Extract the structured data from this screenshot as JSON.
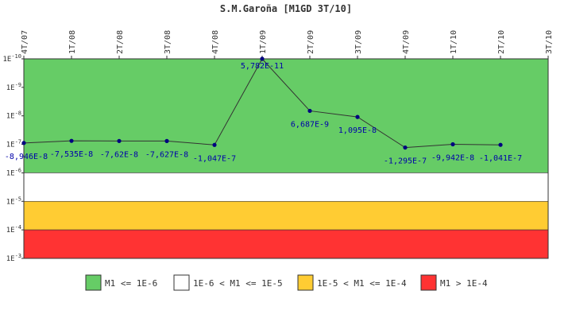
{
  "chart_data": {
    "type": "line",
    "title": "S.M.Garoña [M1GD 3T/10]",
    "categories": [
      "4T/07",
      "1T/08",
      "2T/08",
      "3T/08",
      "4T/08",
      "1T/09",
      "2T/09",
      "3T/09",
      "4T/09",
      "1T/10",
      "2T/10",
      "3T/10"
    ],
    "y_scale": "log",
    "y_axis_inverted": true,
    "y_ticks": [
      "1E-10",
      "1E-9",
      "1E-8",
      "1E-7",
      "1E-6",
      "1E-5",
      "1E-4",
      "1E-3"
    ],
    "ylim": [
      1e-10,
      0.001
    ],
    "series": [
      {
        "values": [
          -8.946e-08,
          -7.535e-08,
          -7.62e-08,
          -7.627e-08,
          -1.047e-07,
          5.782e-11,
          6.687e-09,
          1.095e-08,
          -1.295e-07,
          -9.942e-08,
          -1.041e-07,
          null
        ],
        "labels": [
          "-8,946E-8",
          "-7,535E-8",
          "-7,62E-8",
          "-7,627E-8",
          "-1,047E-7",
          "5,782E-11",
          "6,687E-9",
          "1,095E-8",
          "-1,295E-7",
          "-9,942E-8",
          "-1,041E-7",
          ""
        ],
        "color": "#000080"
      }
    ],
    "bands": [
      {
        "from": 1e-10,
        "to": 1e-06,
        "color": "#66cc66",
        "label": "M1 <= 1E-6"
      },
      {
        "from": 1e-06,
        "to": 1e-05,
        "color": "#ffffff",
        "label": "1E-6 < M1 <= 1E-5"
      },
      {
        "from": 1e-05,
        "to": 0.0001,
        "color": "#ffcc33",
        "label": "1E-5 < M1 <= 1E-4"
      },
      {
        "from": 0.0001,
        "to": 0.001,
        "color": "#ff3333",
        "label": "M1 > 1E-4"
      }
    ],
    "legend_position": "bottom"
  }
}
